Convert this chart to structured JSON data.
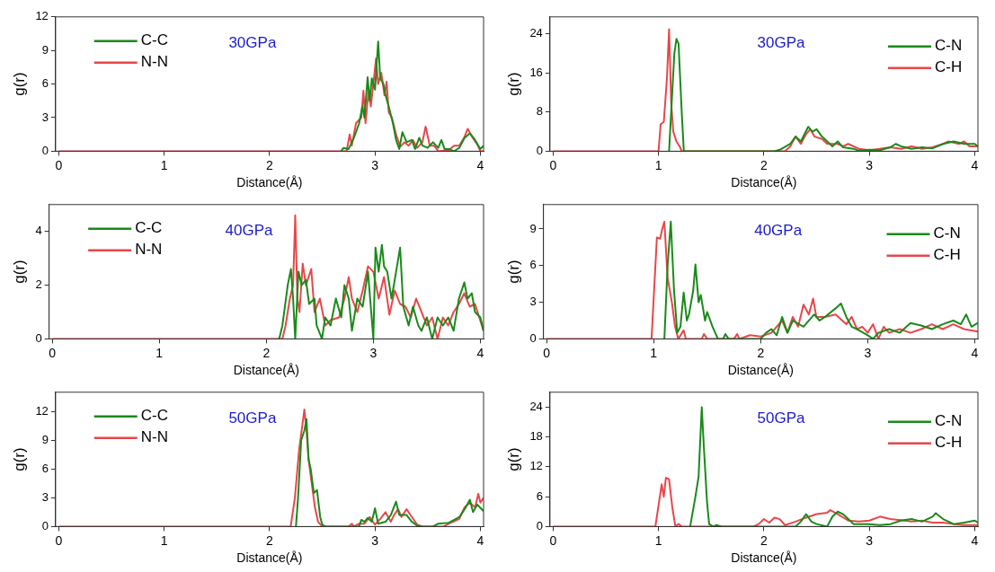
{
  "chart_data": [
    {
      "type": "line",
      "xlabel": "Distance(Å)",
      "ylabel": "g(r)",
      "annotations": [
        "30GPa"
      ],
      "xlim": [
        -0.03,
        4.03
      ],
      "xticks": [
        0,
        1,
        2,
        3,
        4
      ],
      "ylim": [
        0,
        12
      ],
      "yticks": [
        0,
        3,
        6,
        9,
        12
      ],
      "legend": "top left",
      "grid": false,
      "series": [
        {
          "name": "C-C",
          "color": "#1a8a1a",
          "x": [
            2.68,
            2.7,
            2.75,
            2.8,
            2.85,
            2.88,
            2.9,
            2.93,
            2.95,
            2.97,
            3.0,
            3.03,
            3.05,
            3.08,
            3.1,
            3.13,
            3.17,
            3.2,
            3.23,
            3.26,
            3.3,
            3.35,
            3.38,
            3.42,
            3.45,
            3.5,
            3.55,
            3.6,
            3.63,
            3.66,
            3.7,
            3.75,
            3.8,
            3.85,
            3.9,
            3.95,
            4.0,
            4.03
          ],
          "values": [
            0,
            0.3,
            0.2,
            1.2,
            2.5,
            4,
            3,
            6.6,
            4.5,
            6.5,
            5.5,
            9.8,
            6.5,
            6,
            5,
            4,
            2.5,
            1,
            0.2,
            1.7,
            0.8,
            1,
            0.2,
            1.2,
            0.5,
            0.3,
            0.8,
            0.3,
            1,
            0.2,
            0.2,
            0,
            0.3,
            1.2,
            1.6,
            1,
            0.2,
            0.5
          ]
        },
        {
          "name": "N-N",
          "color": "#e8474a",
          "x": [
            0,
            2.73,
            2.76,
            2.78,
            2.82,
            2.87,
            2.89,
            2.91,
            2.94,
            2.96,
            2.99,
            3.01,
            3.03,
            3.06,
            3.09,
            3.11,
            3.13,
            3.16,
            3.2,
            3.24,
            3.28,
            3.32,
            3.36,
            3.4,
            3.45,
            3.48,
            3.52,
            3.56,
            3.6,
            3.7,
            3.75,
            3.8,
            3.85,
            3.88,
            3.92,
            3.97,
            4.0,
            4.03
          ],
          "values": [
            0,
            0,
            1.5,
            0.5,
            2.5,
            3,
            5.4,
            2.5,
            5.5,
            4,
            6.5,
            8.3,
            6,
            7,
            5,
            6.2,
            3.5,
            3,
            1.5,
            0.4,
            0.8,
            0.5,
            1,
            0.3,
            0.8,
            2.2,
            0.5,
            0.5,
            0,
            0.1,
            0.5,
            0.5,
            1.3,
            2,
            1.3,
            0.6,
            0,
            0
          ]
        }
      ]
    },
    {
      "type": "line",
      "xlabel": "Distance(Å)",
      "ylabel": "g(r)",
      "annotations": [
        "30GPa"
      ],
      "xlim": [
        -0.03,
        4.03
      ],
      "xticks": [
        0,
        1,
        2,
        3,
        4
      ],
      "ylim": [
        0,
        27.5
      ],
      "yticks": [
        0,
        8,
        16,
        24
      ],
      "legend": "top right",
      "grid": false,
      "series": [
        {
          "name": "C-N",
          "color": "#1a8a1a",
          "x": [
            1.1,
            1.15,
            1.17,
            1.19,
            1.22,
            1.24,
            2.1,
            2.15,
            2.25,
            2.3,
            2.35,
            2.42,
            2.46,
            2.5,
            2.55,
            2.6,
            2.65,
            2.7,
            2.75,
            2.85,
            2.9,
            3.0,
            3.1,
            3.2,
            3.25,
            3.3,
            3.4,
            3.5,
            3.6,
            3.7,
            3.8,
            3.9,
            4.0,
            4.03
          ],
          "values": [
            0,
            20,
            23,
            22,
            8,
            0,
            0,
            0.3,
            1.5,
            3,
            2,
            5,
            4,
            4.5,
            3,
            2,
            1,
            2,
            0.8,
            0.5,
            0.1,
            0.3,
            0.2,
            0.8,
            1.5,
            1,
            0.5,
            0.8,
            0.6,
            1.5,
            2,
            1.5,
            1.5,
            1
          ]
        },
        {
          "name": "C-H",
          "color": "#e8474a",
          "x": [
            0,
            1.0,
            1.02,
            1.05,
            1.08,
            1.1,
            1.12,
            1.14,
            1.17,
            1.2,
            1.22,
            2.2,
            2.25,
            2.3,
            2.35,
            2.4,
            2.44,
            2.48,
            2.55,
            2.6,
            2.7,
            2.75,
            2.8,
            2.9,
            3.0,
            3.1,
            3.2,
            3.3,
            3.4,
            3.5,
            3.6,
            3.7,
            3.75,
            3.85,
            3.9,
            3.95,
            4.03
          ],
          "values": [
            0,
            0,
            5.5,
            6,
            15,
            25,
            10,
            4,
            2,
            1,
            0,
            0,
            1,
            3,
            1.5,
            3.5,
            4.5,
            3,
            2.5,
            1.5,
            1.5,
            1,
            1.5,
            0.5,
            0.2,
            0.5,
            0.8,
            0.5,
            1,
            0.5,
            0.8,
            1.5,
            2,
            1.5,
            2,
            1,
            1
          ]
        }
      ]
    },
    {
      "type": "line",
      "xlabel": "Distance(Å)",
      "ylabel": "g(r)",
      "annotations": [
        "40GPa"
      ],
      "xlim": [
        -0.03,
        4.03
      ],
      "xticks": [
        0,
        1,
        2,
        3,
        4
      ],
      "ylim": [
        0,
        5
      ],
      "yticks": [
        0,
        2,
        4
      ],
      "legend": "top left",
      "grid": false,
      "series": [
        {
          "name": "C-C",
          "color": "#1a8a1a",
          "x": [
            2.12,
            2.15,
            2.2,
            2.23,
            2.25,
            2.27,
            2.3,
            2.33,
            2.37,
            2.4,
            2.45,
            2.47,
            2.52,
            2.55,
            2.6,
            2.65,
            2.7,
            2.73,
            2.77,
            2.8,
            2.85,
            2.9,
            2.95,
            2.98,
            3.0,
            3.02,
            3.05,
            3.08,
            3.1,
            3.13,
            3.17,
            3.2,
            3.25,
            3.28,
            3.33,
            3.37,
            3.42,
            3.45,
            3.5,
            3.55,
            3.6,
            3.65,
            3.7,
            3.75,
            3.8,
            3.85,
            3.88,
            3.92,
            3.95,
            4.0,
            4.03
          ],
          "values": [
            0,
            0.5,
            2,
            2.6,
            1.5,
            0,
            2.5,
            2,
            2.2,
            1.3,
            1.5,
            0.5,
            0,
            0.8,
            0.5,
            1.5,
            0.8,
            2,
            1.5,
            0.3,
            1.5,
            1.2,
            2.5,
            1,
            0,
            3.4,
            2.5,
            3.5,
            2.7,
            2.5,
            1.5,
            2.2,
            3.4,
            1.2,
            0.5,
            1.2,
            0.5,
            0.3,
            0.8,
            0,
            0.8,
            0.5,
            0.8,
            0.3,
            1.5,
            2.1,
            1.5,
            1.7,
            1,
            0.8,
            0.3
          ]
        },
        {
          "name": "N-N",
          "color": "#e8474a",
          "x": [
            0,
            2.15,
            2.18,
            2.22,
            2.25,
            2.27,
            2.29,
            2.31,
            2.34,
            2.37,
            2.42,
            2.45,
            2.5,
            2.55,
            2.6,
            2.68,
            2.73,
            2.77,
            2.8,
            2.85,
            2.9,
            2.95,
            3.0,
            3.05,
            3.1,
            3.15,
            3.2,
            3.25,
            3.3,
            3.35,
            3.4,
            3.45,
            3.5,
            3.55,
            3.6,
            3.65,
            3.7,
            3.75,
            3.8,
            3.85,
            3.9,
            3.95,
            4.03
          ],
          "values": [
            0,
            0,
            0.5,
            1.5,
            2,
            4.6,
            1.5,
            1,
            2.8,
            2,
            2.6,
            1,
            1.5,
            0.5,
            0.7,
            0.8,
            1.5,
            2.3,
            1.5,
            1,
            1.8,
            2.7,
            2.5,
            1.5,
            2.3,
            0.9,
            1.8,
            1.3,
            1.2,
            0.8,
            1.5,
            1,
            0.5,
            0.8,
            0,
            0.8,
            0.5,
            1,
            1.3,
            1.7,
            1.2,
            1.3,
            0.3
          ]
        }
      ]
    },
    {
      "type": "line",
      "xlabel": "Distance(Å)",
      "ylabel": "g(r)",
      "annotations": [
        "40GPa"
      ],
      "xlim": [
        -0.03,
        4.03
      ],
      "xticks": [
        0,
        1,
        2,
        3,
        4
      ],
      "ylim": [
        0,
        11
      ],
      "yticks": [
        0,
        3,
        6,
        9
      ],
      "legend": "top right",
      "grid": false,
      "series": [
        {
          "name": "C-N",
          "color": "#1a8a1a",
          "x": [
            1.1,
            1.13,
            1.16,
            1.19,
            1.22,
            1.25,
            1.28,
            1.31,
            1.33,
            1.37,
            1.39,
            1.42,
            1.44,
            1.48,
            1.5,
            1.55,
            1.6,
            1.65,
            1.67,
            1.7,
            2.0,
            2.05,
            2.1,
            2.15,
            2.2,
            2.25,
            2.3,
            2.4,
            2.5,
            2.55,
            2.6,
            2.7,
            2.75,
            2.8,
            2.85,
            2.9,
            3.0,
            3.05,
            3.1,
            3.2,
            3.3,
            3.4,
            3.5,
            3.6,
            3.7,
            3.8,
            3.87,
            3.92,
            3.97,
            4.03
          ],
          "values": [
            0,
            6,
            9.6,
            4,
            0.5,
            1,
            3.8,
            1.5,
            2,
            4,
            6.1,
            3,
            3.6,
            1.5,
            2.2,
            1,
            0,
            0,
            0.4,
            0,
            0,
            0.5,
            0.8,
            0.3,
            1.8,
            0.5,
            1.5,
            1,
            2,
            1.5,
            1.8,
            2.5,
            2.9,
            1.8,
            1,
            0.8,
            0.3,
            0,
            0.5,
            0.8,
            0.5,
            1.3,
            1.1,
            0.8,
            1.2,
            1.5,
            1.2,
            2,
            1,
            1.3
          ]
        },
        {
          "name": "C-H",
          "color": "#e8474a",
          "x": [
            0,
            0.98,
            1.03,
            1.06,
            1.08,
            1.1,
            1.13,
            1.17,
            1.2,
            1.23,
            1.28,
            1.3,
            1.45,
            1.47,
            1.5,
            1.75,
            1.78,
            1.8,
            1.9,
            2.0,
            2.1,
            2.2,
            2.25,
            2.3,
            2.35,
            2.4,
            2.45,
            2.49,
            2.52,
            2.6,
            2.7,
            2.8,
            2.85,
            2.9,
            2.95,
            3.0,
            3.05,
            3.1,
            3.15,
            3.2,
            3.3,
            3.4,
            3.5,
            3.6,
            3.7,
            3.8,
            3.9,
            4.03
          ],
          "values": [
            0,
            0,
            8.3,
            8.2,
            9,
            9.6,
            5,
            3,
            1,
            0,
            0.7,
            0,
            0,
            0.4,
            0,
            0,
            0.4,
            0,
            0.3,
            0.2,
            0.5,
            1.5,
            0.5,
            1.8,
            1,
            2.8,
            2,
            3.3,
            1.8,
            1.8,
            2,
            1.2,
            1.8,
            0.8,
            1,
            0.5,
            1.2,
            0,
            1,
            0.5,
            0.8,
            0.5,
            0.8,
            1.2,
            0.8,
            1.2,
            0.8,
            0.6
          ]
        }
      ]
    },
    {
      "type": "line",
      "xlabel": "Distance(Å)",
      "ylabel": "g(r)",
      "annotations": [
        "50GPa"
      ],
      "xlim": [
        -0.03,
        4.03
      ],
      "xticks": [
        0,
        1,
        2,
        3,
        4
      ],
      "ylim": [
        0,
        14
      ],
      "yticks": [
        0,
        3,
        6,
        9,
        12
      ],
      "legend": "top left",
      "grid": false,
      "series": [
        {
          "name": "C-C",
          "color": "#1a8a1a",
          "x": [
            2.25,
            2.27,
            2.3,
            2.33,
            2.35,
            2.37,
            2.39,
            2.42,
            2.45,
            2.48,
            2.5,
            2.53,
            2.85,
            2.87,
            2.9,
            2.93,
            2.97,
            3.0,
            3.03,
            3.1,
            3.15,
            3.2,
            3.23,
            3.3,
            3.35,
            3.4,
            3.45,
            3.55,
            3.6,
            3.7,
            3.8,
            3.85,
            3.9,
            3.93,
            3.97,
            4.03
          ],
          "values": [
            0,
            3,
            9,
            10,
            11.2,
            7,
            6,
            3.5,
            3.8,
            1,
            0.2,
            0,
            0,
            0.7,
            0.5,
            0.9,
            0.5,
            1.9,
            0.3,
            0.5,
            1.2,
            2.6,
            1.2,
            1.2,
            0.5,
            0.1,
            0,
            0,
            0.3,
            0.4,
            1,
            1.8,
            2.8,
            1.5,
            2.3,
            1.6
          ]
        },
        {
          "name": "N-N",
          "color": "#e8474a",
          "x": [
            0,
            2.2,
            2.24,
            2.28,
            2.31,
            2.33,
            2.35,
            2.37,
            2.4,
            2.43,
            2.46,
            2.5,
            2.75,
            2.78,
            2.8,
            2.85,
            2.9,
            2.95,
            3.0,
            3.05,
            3.1,
            3.15,
            3.18,
            3.22,
            3.25,
            3.3,
            3.35,
            3.4,
            3.45,
            3.65,
            3.7,
            3.8,
            3.85,
            3.9,
            3.95,
            3.98,
            4.0,
            4.03
          ],
          "values": [
            0,
            0,
            3,
            8,
            10.5,
            12.2,
            10,
            7,
            4.5,
            2,
            0.5,
            0,
            0,
            0.3,
            0,
            0.3,
            0.3,
            1,
            0.2,
            0.8,
            1.5,
            0.5,
            1.2,
            1.8,
            1,
            1.8,
            1,
            0.2,
            0,
            0,
            0.3,
            0.8,
            2,
            2.5,
            2,
            3.4,
            2.5,
            3
          ]
        }
      ]
    },
    {
      "type": "line",
      "xlabel": "Distance(Å)",
      "ylabel": "g(r)",
      "annotations": [
        "50GPa"
      ],
      "xlim": [
        -0.03,
        4.03
      ],
      "xticks": [
        0,
        1,
        2,
        3,
        4
      ],
      "ylim": [
        0,
        27
      ],
      "yticks": [
        0,
        6,
        12,
        18,
        24
      ],
      "legend": "top right",
      "grid": false,
      "series": [
        {
          "name": "C-N",
          "color": "#1a8a1a",
          "x": [
            1.3,
            1.35,
            1.38,
            1.41,
            1.43,
            1.46,
            1.48,
            1.52,
            1.55,
            1.6,
            2.3,
            2.35,
            2.4,
            2.45,
            2.5,
            2.6,
            2.65,
            2.7,
            2.75,
            2.8,
            2.85,
            3.0,
            3.1,
            3.2,
            3.3,
            3.4,
            3.5,
            3.6,
            3.63,
            3.7,
            3.8,
            3.9,
            4.0,
            4.03
          ],
          "values": [
            0,
            6,
            10,
            24,
            16,
            5,
            0.5,
            0,
            0.3,
            0,
            0,
            1,
            2.5,
            1,
            0.5,
            0,
            2,
            3,
            2.5,
            1.5,
            0.5,
            0.5,
            0.3,
            0.5,
            1.2,
            1.5,
            1,
            2,
            2.7,
            1.5,
            0.5,
            0.8,
            1.2,
            0.8
          ]
        },
        {
          "name": "C-H",
          "color": "#e8474a",
          "x": [
            0,
            0.97,
            1.03,
            1.05,
            1.07,
            1.1,
            1.13,
            1.16,
            1.19,
            1.22,
            1.9,
            1.95,
            2.0,
            2.05,
            2.1,
            2.15,
            2.2,
            2.3,
            2.4,
            2.5,
            2.6,
            2.63,
            2.7,
            2.8,
            2.9,
            3.0,
            3.1,
            3.2,
            3.3,
            3.4,
            3.5,
            3.6,
            3.7,
            3.8,
            3.9,
            4.03
          ],
          "values": [
            0,
            0,
            8.5,
            6,
            9.8,
            9.5,
            4,
            0,
            0.5,
            0,
            0,
            0.5,
            1.5,
            0.8,
            1.8,
            1.5,
            0.3,
            1,
            1.8,
            2.5,
            2.8,
            3.3,
            2.5,
            1.2,
            1,
            1.2,
            2,
            1.5,
            1.3,
            1,
            1.2,
            0.8,
            0.8,
            0.5,
            0.3,
            0.3
          ]
        }
      ]
    }
  ]
}
